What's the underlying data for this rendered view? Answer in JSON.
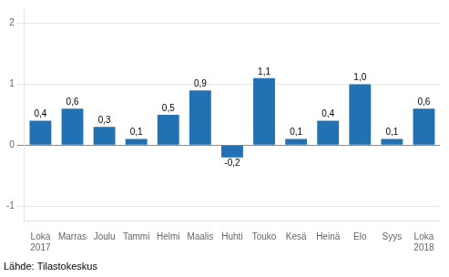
{
  "chart_data": {
    "type": "bar",
    "categories": [
      "Loka\n2017",
      "Marras",
      "Joulu",
      "Tammi",
      "Helmi",
      "Maalis",
      "Huhti",
      "Touko",
      "Kesä",
      "Heinä",
      "Elo",
      "Syys",
      "Loka\n2018"
    ],
    "values": [
      0.4,
      0.6,
      0.3,
      0.1,
      0.5,
      0.9,
      -0.2,
      1.1,
      0.1,
      0.4,
      1.0,
      0.1,
      0.6
    ],
    "value_labels": [
      "0,4",
      "0,6",
      "0,3",
      "0,1",
      "0,5",
      "0,9",
      "-0,2",
      "1,1",
      "0,1",
      "0,4",
      "1,0",
      "0,1",
      "0,6"
    ],
    "data_labels": true,
    "color": "#2271b3",
    "ylim": [
      -1.25,
      2.25
    ],
    "yticks": [
      -1,
      0,
      1,
      2
    ],
    "grid": true,
    "source": "Lähde: Tilastokeskus"
  }
}
